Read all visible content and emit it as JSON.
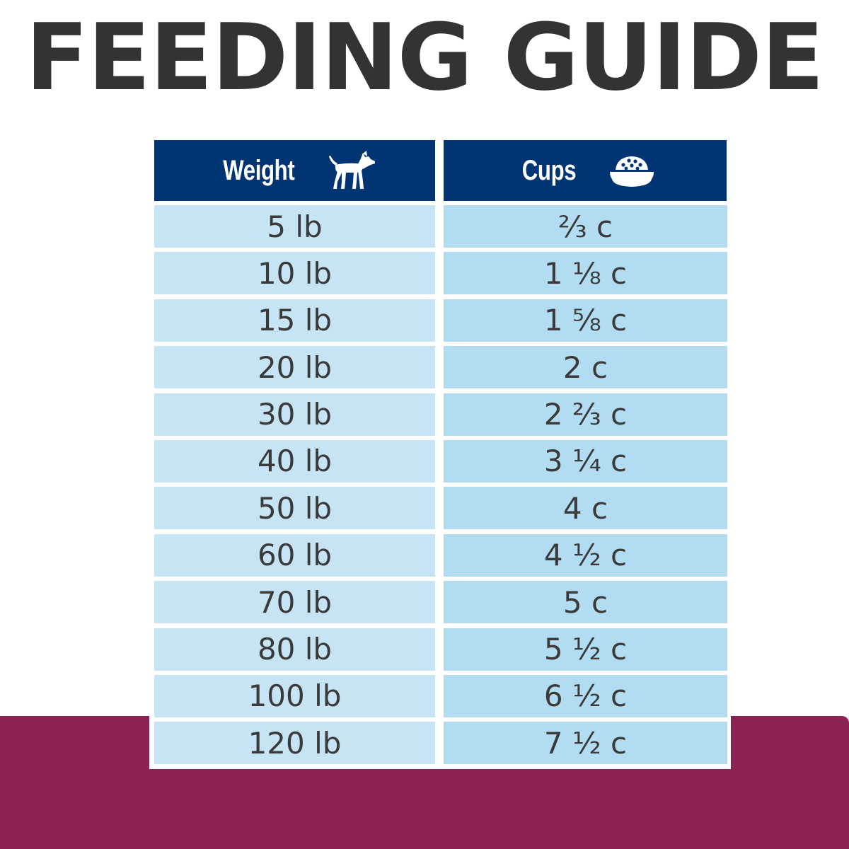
{
  "title": "FEEDING GUIDE",
  "colors": {
    "title": "#333333",
    "header_bg": "#003473",
    "weight_cell_bg": "#c7e4f5",
    "cups_cell_bg": "#b1dcf1",
    "bottom_band": "#8b2352"
  },
  "table": {
    "headers": {
      "weight": {
        "label": "Weight",
        "icon": "dog-icon"
      },
      "cups": {
        "label": "Cups",
        "icon": "food-bowl-icon"
      }
    },
    "rows": [
      {
        "weight": "5 lb",
        "cups": "⅔ c"
      },
      {
        "weight": "10 lb",
        "cups": "1 ⅛ c"
      },
      {
        "weight": "15 lb",
        "cups": "1 ⅝ c"
      },
      {
        "weight": "20 lb",
        "cups": "2 c"
      },
      {
        "weight": "30 lb",
        "cups": "2 ⅔ c"
      },
      {
        "weight": "40 lb",
        "cups": "3 ¼ c"
      },
      {
        "weight": "50 lb",
        "cups": "4 c"
      },
      {
        "weight": "60 lb",
        "cups": "4 ½ c"
      },
      {
        "weight": "70 lb",
        "cups": "5 c"
      },
      {
        "weight": "80 lb",
        "cups": "5 ½ c"
      },
      {
        "weight": "100 lb",
        "cups": "6 ½ c"
      },
      {
        "weight": "120 lb",
        "cups": "7 ½ c"
      }
    ]
  }
}
